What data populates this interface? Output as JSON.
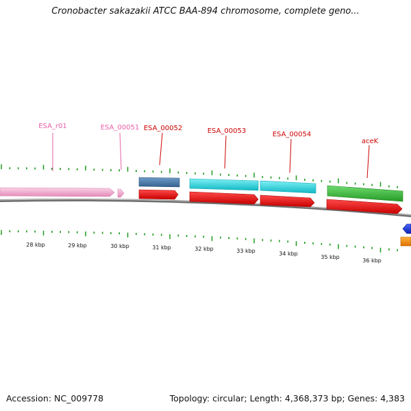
{
  "title": "Cronobacter sakazakii ATCC BAA-894 chromosome, complete geno...",
  "footer": {
    "accession": "Accession: NC_009778",
    "summary": "Topology: circular; Length: 4,368,373 bp; Genes: 4,383"
  },
  "colors": {
    "rna_label": "#e85fa8",
    "gene_label": "#cc0000",
    "tick": "#1a9a1a",
    "backbone": "#7a7a7a"
  },
  "ruler": [
    "28 kbp",
    "29 kbp",
    "30 kbp",
    "31 kbp",
    "32 kbp",
    "33 kbp",
    "34 kbp",
    "35 kbp",
    "36 kbp"
  ],
  "labels": [
    {
      "name": "ESA_r01",
      "type": "rna"
    },
    {
      "name": "ESA_00051",
      "type": "rna"
    },
    {
      "name": "ESA_00052",
      "type": "gene"
    },
    {
      "name": "ESA_00053",
      "type": "gene"
    },
    {
      "name": "ESA_00054",
      "type": "gene"
    },
    {
      "name": "aceK",
      "type": "gene"
    }
  ],
  "features": [
    {
      "kind": "rRNA",
      "color": "#f4a8cf"
    },
    {
      "kind": "tRNA",
      "color": "#f4a8cf"
    },
    {
      "kind": "gene",
      "color": "#4a7aaa"
    },
    {
      "kind": "gene",
      "color": "#22d6e0"
    },
    {
      "kind": "gene",
      "color": "#22d6e0"
    },
    {
      "kind": "gene",
      "color": "#3cb83c"
    },
    {
      "kind": "CDS",
      "color": "#ee1111"
    },
    {
      "kind": "CDS",
      "color": "#ee1111"
    },
    {
      "kind": "CDS",
      "color": "#ee1111"
    },
    {
      "kind": "CDS",
      "color": "#ee1111"
    },
    {
      "kind": "CDS",
      "color": "#ee1111"
    },
    {
      "kind": "gene",
      "color": "#1133dd"
    },
    {
      "kind": "gene",
      "color": "#ff8c00"
    }
  ]
}
